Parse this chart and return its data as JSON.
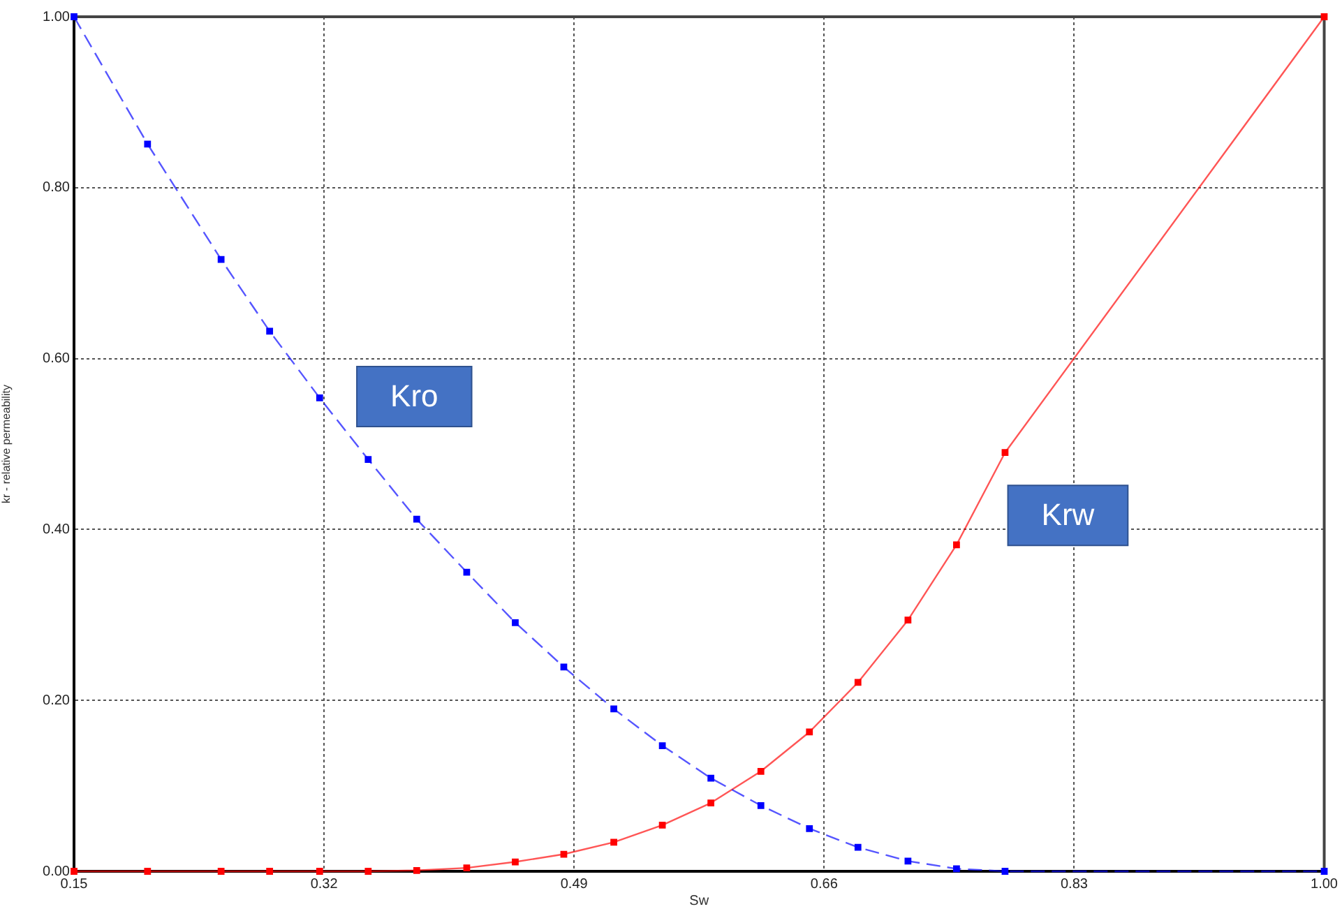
{
  "chart_data": {
    "type": "line",
    "xlabel": "Sw",
    "ylabel": "kr - relative permeability",
    "x": [
      0.15,
      0.2,
      0.25,
      0.283,
      0.317,
      0.35,
      0.383,
      0.417,
      0.45,
      0.483,
      0.517,
      0.55,
      0.583,
      0.617,
      0.65,
      0.683,
      0.717,
      0.75,
      0.783,
      1.0
    ],
    "series": [
      {
        "name": "Kro",
        "color": "#0000ff",
        "line_style": "dashed",
        "values": [
          1.0,
          0.851,
          0.716,
          0.632,
          0.554,
          0.482,
          0.412,
          0.35,
          0.291,
          0.239,
          0.19,
          0.147,
          0.109,
          0.077,
          0.05,
          0.028,
          0.012,
          0.003,
          0.0,
          0.0
        ]
      },
      {
        "name": "Krw",
        "color": "#ff0000",
        "line_style": "solid",
        "values": [
          0.0,
          0.0,
          0.0,
          0.0,
          0.0,
          0.0,
          0.001,
          0.004,
          0.011,
          0.02,
          0.034,
          0.054,
          0.08,
          0.117,
          0.163,
          0.221,
          0.294,
          0.382,
          0.49,
          1.0
        ]
      }
    ],
    "xlim": [
      0.15,
      1.0
    ],
    "xticks": [
      0.15,
      0.32,
      0.49,
      0.66,
      0.83,
      {
        "value": 1,
        "label": "1.00"
      }
    ],
    "ylim": [
      0,
      1
    ],
    "yticks": [
      {
        "value": 0,
        "label": "0.00"
      },
      {
        "value": 0.2,
        "label": "0.20"
      },
      {
        "value": 0.4,
        "label": "0.40"
      },
      {
        "value": 0.6,
        "label": "0.60"
      },
      {
        "value": 0.8,
        "label": "0.80"
      },
      {
        "value": 1,
        "label": "1.00"
      }
    ],
    "grid": true,
    "legend": false,
    "marker": "square"
  }
}
